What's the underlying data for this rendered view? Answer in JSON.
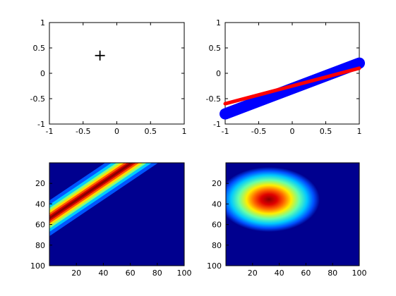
{
  "chart_data": [
    {
      "type": "scatter",
      "title": "",
      "xlabel": "",
      "ylabel": "",
      "xlim": [
        -1,
        1
      ],
      "ylim": [
        -1,
        1
      ],
      "xticks": [
        "-1",
        "-0.5",
        "0",
        "0.5",
        "1"
      ],
      "yticks": [
        "1",
        "0.5",
        "0",
        "-0.5",
        "-1"
      ],
      "marker": "+",
      "points": [
        {
          "x": -0.25,
          "y": 0.35
        }
      ],
      "grid": false
    },
    {
      "type": "line",
      "title": "",
      "xlabel": "",
      "ylabel": "",
      "xlim": [
        -1,
        1
      ],
      "ylim": [
        -1,
        1
      ],
      "xticks": [
        "-1",
        "-0.5",
        "0",
        "0.5",
        "1"
      ],
      "yticks": [
        "1",
        "0.5",
        "0",
        "-0.5",
        "-1"
      ],
      "series": [
        {
          "color": "#0000ff",
          "style": "thick line with circle markers",
          "x": [
            -1,
            1
          ],
          "y": [
            -0.8,
            0.2
          ]
        },
        {
          "color": "#ff0000",
          "style": "thick line",
          "x": [
            -1,
            1
          ],
          "y": [
            -0.6,
            0.1
          ]
        }
      ],
      "grid": false
    },
    {
      "type": "heatmap",
      "title": "",
      "colormap": "jet",
      "xlim": [
        0,
        100
      ],
      "ylim": [
        0,
        100
      ],
      "y_direction": "reversed",
      "xticks": [
        "20",
        "40",
        "60",
        "80",
        "100"
      ],
      "yticks": [
        "20",
        "40",
        "60",
        "80",
        "100"
      ],
      "description_values": {
        "shape": "diagonal ridge",
        "ridge_from": [
          0,
          50
        ],
        "ridge_to": [
          65,
          0
        ]
      }
    },
    {
      "type": "heatmap",
      "title": "",
      "colormap": "jet",
      "xlim": [
        0,
        100
      ],
      "ylim": [
        0,
        100
      ],
      "y_direction": "reversed",
      "xticks": [
        "20",
        "40",
        "60",
        "80",
        "100"
      ],
      "yticks": [
        "20",
        "40",
        "60",
        "80",
        "100"
      ],
      "description_values": {
        "shape": "elliptical gaussian",
        "peak": [
          32,
          37
        ]
      }
    }
  ]
}
